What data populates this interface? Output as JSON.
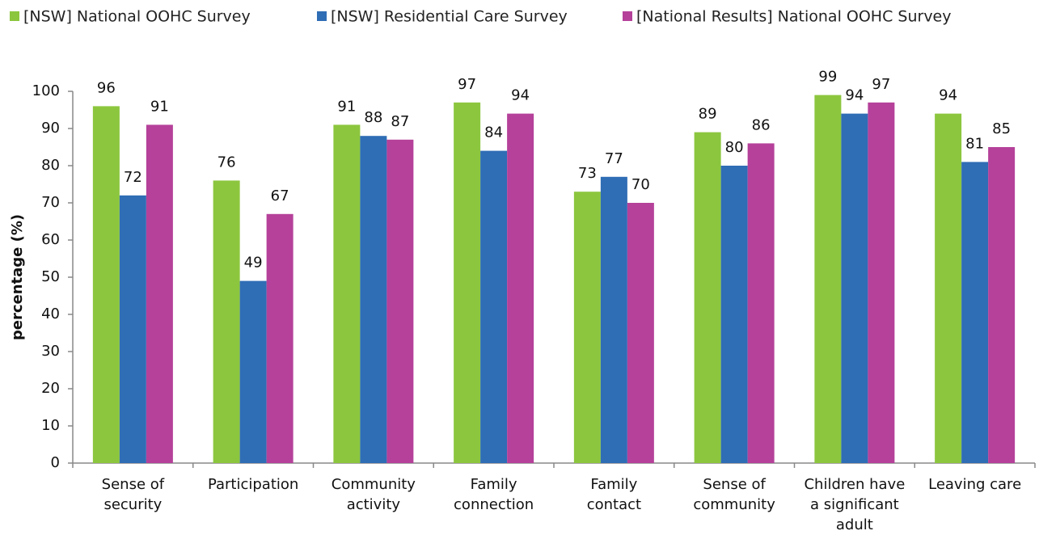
{
  "chart_data": {
    "type": "bar",
    "y_label": "percentage (%)",
    "categories": [
      "Sense of\nsecurity",
      "Participation",
      "Community\nactivity",
      "Family\nconnection",
      "Family\ncontact",
      "Sense of\ncommunity",
      "Children have\na significant\nadult",
      "Leaving care"
    ],
    "series": [
      {
        "name": "[NSW] National OOHC Survey",
        "color": "#8cc63e",
        "values": [
          96,
          76,
          91,
          97,
          73,
          89,
          99,
          94
        ]
      },
      {
        "name": "[NSW] Residential Care Survey",
        "color": "#2f6db5",
        "values": [
          72,
          49,
          88,
          84,
          77,
          80,
          94,
          81
        ]
      },
      {
        "name": "[National Results] National OOHC Survey",
        "color": "#b5419a",
        "values": [
          91,
          67,
          87,
          94,
          70,
          86,
          97,
          85
        ]
      }
    ],
    "ylim": [
      0,
      100
    ],
    "yticks": [
      0,
      10,
      20,
      30,
      40,
      50,
      60,
      70,
      80,
      90,
      100
    ],
    "legend": "top",
    "grid": false
  }
}
